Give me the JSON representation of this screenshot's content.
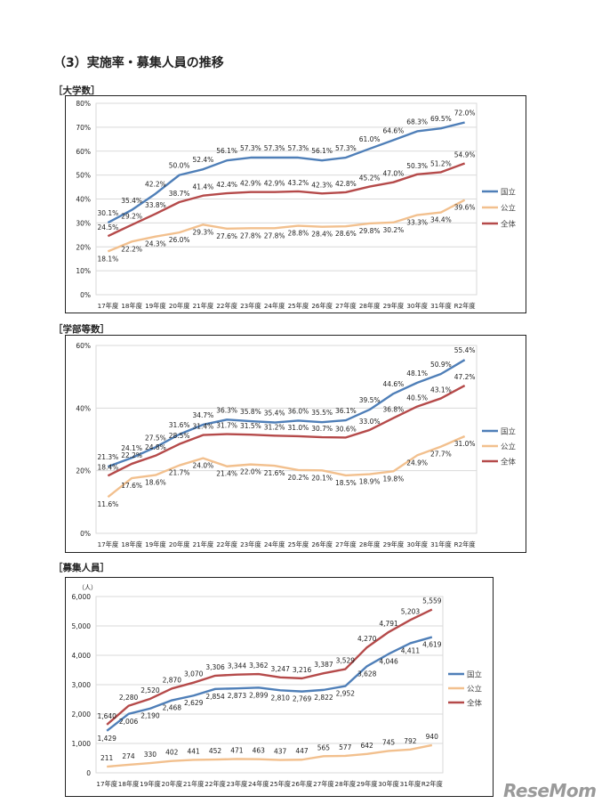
{
  "page_title": "（3）実施率・募集人員の推移",
  "logo_text": "ReseMom",
  "chart_data": [
    {
      "type": "line",
      "section_label": "［大学数］",
      "categories": [
        "17年度",
        "18年度",
        "19年度",
        "20年度",
        "21年度",
        "22年度",
        "23年度",
        "24年度",
        "25年度",
        "26年度",
        "27年度",
        "28年度",
        "29年度",
        "30年度",
        "31年度",
        "R2年度"
      ],
      "ylim": [
        0,
        80
      ],
      "yticks": [
        "0%",
        "10%",
        "20%",
        "30%",
        "40%",
        "50%",
        "60%",
        "70%",
        "80%"
      ],
      "ytick_values": [
        0,
        10,
        20,
        30,
        40,
        50,
        60,
        70,
        80
      ],
      "unit_label": "",
      "grid": true,
      "legend": "right",
      "series": [
        {
          "name": "国立",
          "color": "#4f7fb8",
          "values": [
            30.1,
            35.4,
            42.2,
            50.0,
            52.4,
            56.1,
            57.3,
            57.3,
            57.3,
            56.1,
            57.3,
            61.0,
            64.6,
            68.3,
            69.5,
            72.0
          ]
        },
        {
          "name": "公立",
          "color": "#f2c08e",
          "values": [
            18.1,
            22.2,
            24.3,
            26.0,
            29.3,
            27.6,
            27.8,
            27.8,
            28.8,
            28.4,
            28.6,
            29.8,
            30.2,
            33.3,
            34.4,
            39.6
          ]
        },
        {
          "name": "全体",
          "color": "#b54a4a",
          "values": [
            24.5,
            29.2,
            33.8,
            38.7,
            41.4,
            42.4,
            42.9,
            42.9,
            43.2,
            42.3,
            42.8,
            45.2,
            47.0,
            50.3,
            51.2,
            54.9
          ]
        }
      ]
    },
    {
      "type": "line",
      "section_label": "［学部等数］",
      "categories": [
        "17年度",
        "18年度",
        "19年度",
        "20年度",
        "21年度",
        "22年度",
        "23年度",
        "24年度",
        "25年度",
        "26年度",
        "27年度",
        "28年度",
        "29年度",
        "30年度",
        "31年度",
        "R2年度"
      ],
      "ylim": [
        0,
        60
      ],
      "yticks": [
        "0%",
        "20%",
        "40%",
        "60%"
      ],
      "ytick_values": [
        0,
        20,
        40,
        60
      ],
      "unit_label": "",
      "grid": true,
      "legend": "right",
      "series": [
        {
          "name": "国立",
          "color": "#4f7fb8",
          "values": [
            21.3,
            24.1,
            27.5,
            31.6,
            34.7,
            36.3,
            35.8,
            35.4,
            36.0,
            35.5,
            36.1,
            39.5,
            44.6,
            48.1,
            50.9,
            55.4
          ]
        },
        {
          "name": "公立",
          "color": "#f2c08e",
          "values": [
            11.6,
            17.6,
            18.6,
            21.7,
            24.0,
            21.4,
            22.0,
            21.6,
            20.2,
            20.1,
            18.5,
            18.9,
            19.8,
            24.9,
            27.7,
            31.0
          ]
        },
        {
          "name": "全体",
          "color": "#b54a4a",
          "values": [
            18.4,
            22.2,
            24.8,
            28.5,
            31.4,
            31.7,
            31.5,
            31.2,
            31.0,
            30.7,
            30.6,
            33.0,
            36.8,
            40.5,
            43.1,
            47.2
          ]
        }
      ]
    },
    {
      "type": "line",
      "section_label": "［募集人員］",
      "categories": [
        "17年度",
        "18年度",
        "19年度",
        "20年度",
        "21年度",
        "22年度",
        "23年度",
        "24年度",
        "25年度",
        "26年度",
        "27年度",
        "28年度",
        "29年度",
        "30年度",
        "31年度",
        "R2年度"
      ],
      "ylim": [
        0,
        6000
      ],
      "yticks": [
        "0",
        "1,000",
        "2,000",
        "3,000",
        "4,000",
        "5,000",
        "6,000"
      ],
      "ytick_values": [
        0,
        1000,
        2000,
        3000,
        4000,
        5000,
        6000
      ],
      "unit_label": "（人）",
      "grid": true,
      "legend": "right",
      "series": [
        {
          "name": "国立",
          "color": "#4f7fb8",
          "values": [
            1429,
            2006,
            2190,
            2468,
            2629,
            2854,
            2873,
            2899,
            2810,
            2769,
            2822,
            2952,
            3628,
            4046,
            4411,
            4619
          ]
        },
        {
          "name": "公立",
          "color": "#f2c08e",
          "values": [
            211,
            274,
            330,
            402,
            441,
            452,
            471,
            463,
            437,
            447,
            565,
            577,
            642,
            745,
            792,
            940
          ]
        },
        {
          "name": "全体",
          "color": "#b54a4a",
          "values": [
            1640,
            2280,
            2520,
            2870,
            3070,
            3306,
            3344,
            3362,
            3247,
            3216,
            3387,
            3529,
            4270,
            4791,
            5203,
            5559
          ]
        }
      ]
    }
  ]
}
